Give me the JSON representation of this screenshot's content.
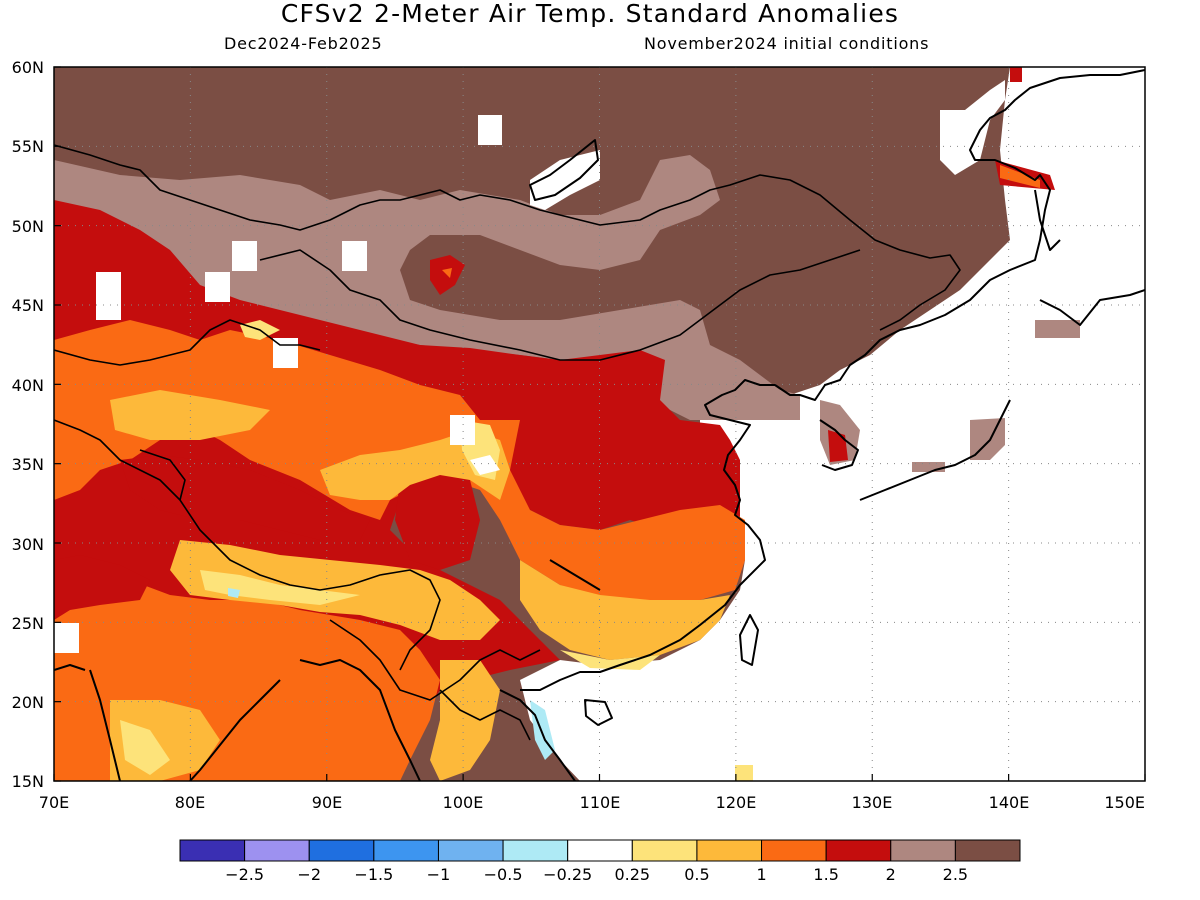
{
  "title": "CFSv2 2-Meter Air Temp. Standard Anomalies",
  "subtitle_left": "Dec2024-Feb2025",
  "subtitle_right": "November2024 initial conditions",
  "map": {
    "lon_range": [
      70,
      150
    ],
    "lat_range": [
      15,
      60
    ],
    "lon_ticks": [
      "70E",
      "80E",
      "90E",
      "100E",
      "110E",
      "120E",
      "130E",
      "140E",
      "150E"
    ],
    "lat_ticks": [
      "15N",
      "20N",
      "25N",
      "30N",
      "35N",
      "40N",
      "45N",
      "50N",
      "55N",
      "60N"
    ],
    "grid": true,
    "region": "East Asia"
  },
  "colorbar": {
    "colors": [
      "#3a2fb3",
      "#9d91f0",
      "#1f6fe0",
      "#3d95f0",
      "#6fb2f0",
      "#aeeaf5",
      "#ffffff",
      "#fde37a",
      "#fdb93a",
      "#fa6a14",
      "#c40d0d",
      "#ae8780",
      "#7b4e44"
    ],
    "labels": [
      "-2.5",
      "-2",
      "-1.5",
      "-1",
      "-0.5",
      "-0.25",
      "0.25",
      "0.5",
      "1",
      "1.5",
      "2",
      "2.5"
    ]
  }
}
